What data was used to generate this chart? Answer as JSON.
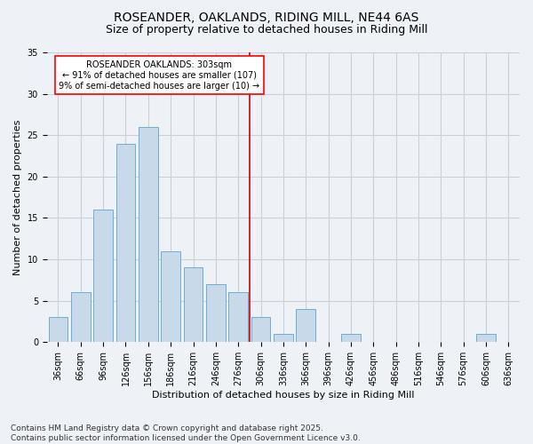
{
  "title": "ROSEANDER, OAKLANDS, RIDING MILL, NE44 6AS",
  "subtitle": "Size of property relative to detached houses in Riding Mill",
  "xlabel": "Distribution of detached houses by size in Riding Mill",
  "ylabel": "Number of detached properties",
  "categories": [
    "36sqm",
    "66sqm",
    "96sqm",
    "126sqm",
    "156sqm",
    "186sqm",
    "216sqm",
    "246sqm",
    "276sqm",
    "306sqm",
    "336sqm",
    "366sqm",
    "396sqm",
    "426sqm",
    "456sqm",
    "486sqm",
    "516sqm",
    "546sqm",
    "576sqm",
    "606sqm",
    "636sqm"
  ],
  "values": [
    3,
    6,
    16,
    24,
    26,
    11,
    9,
    7,
    6,
    3,
    1,
    4,
    0,
    1,
    0,
    0,
    0,
    0,
    0,
    1,
    0
  ],
  "bar_color": "#c8d9ea",
  "bar_edge_color": "#6aaed6",
  "grid_color": "#c8d0d8",
  "background_color": "#eef2f7",
  "annotation_text": "ROSEANDER OAKLANDS: 303sqm\n← 91% of detached houses are smaller (107)\n9% of semi-detached houses are larger (10) →",
  "annotation_box_color": "#ffffff",
  "annotation_box_edge_color": "#ff0000",
  "vline_index": 9,
  "vline_color": "#cc0000",
  "ylim": [
    0,
    35
  ],
  "yticks": [
    0,
    5,
    10,
    15,
    20,
    25,
    30,
    35
  ],
  "footer": "Contains HM Land Registry data © Crown copyright and database right 2025.\nContains public sector information licensed under the Open Government Licence v3.0.",
  "title_fontsize": 10,
  "subtitle_fontsize": 9,
  "xlabel_fontsize": 8,
  "ylabel_fontsize": 8,
  "tick_fontsize": 7,
  "annotation_fontsize": 7,
  "footer_fontsize": 6.5
}
